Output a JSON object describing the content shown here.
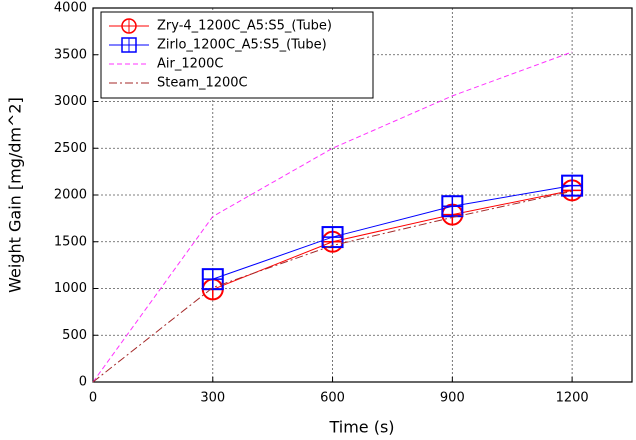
{
  "chart_data": {
    "type": "line",
    "xlabel": "Time (s)",
    "ylabel": "Weight Gain [mg/dm^2]",
    "x": [
      0,
      300,
      600,
      900,
      1200
    ],
    "series": [
      {
        "name": "Zry-4_1200C_A5:S5_(Tube)",
        "color": "#ff0000",
        "marker": "circle",
        "dash": "solid",
        "values": [
          null,
          990,
          1500,
          1790,
          2050
        ]
      },
      {
        "name": "Zirlo_1200C_A5:S5_(Tube)",
        "color": "#0000ff",
        "marker": "square",
        "dash": "solid",
        "values": [
          null,
          1100,
          1550,
          1880,
          2100
        ]
      },
      {
        "name": "Air_1200C",
        "color": "#ff33ff",
        "marker": "none",
        "dash": "dashed",
        "values": [
          0,
          1770,
          2500,
          3060,
          3530
        ]
      },
      {
        "name": "Steam_1200C",
        "color": "#a52a2a",
        "marker": "none",
        "dash": "dashdot",
        "values": [
          0,
          1010,
          1460,
          1760,
          2040
        ]
      }
    ],
    "xlim": [
      0,
      1350
    ],
    "xticks": [
      0,
      300,
      600,
      900,
      1200
    ],
    "ylim": [
      0,
      4000
    ],
    "yticks": [
      0,
      500,
      1000,
      1500,
      2000,
      2500,
      3000,
      3500,
      4000
    ],
    "grid": true,
    "legend": "upper left"
  }
}
